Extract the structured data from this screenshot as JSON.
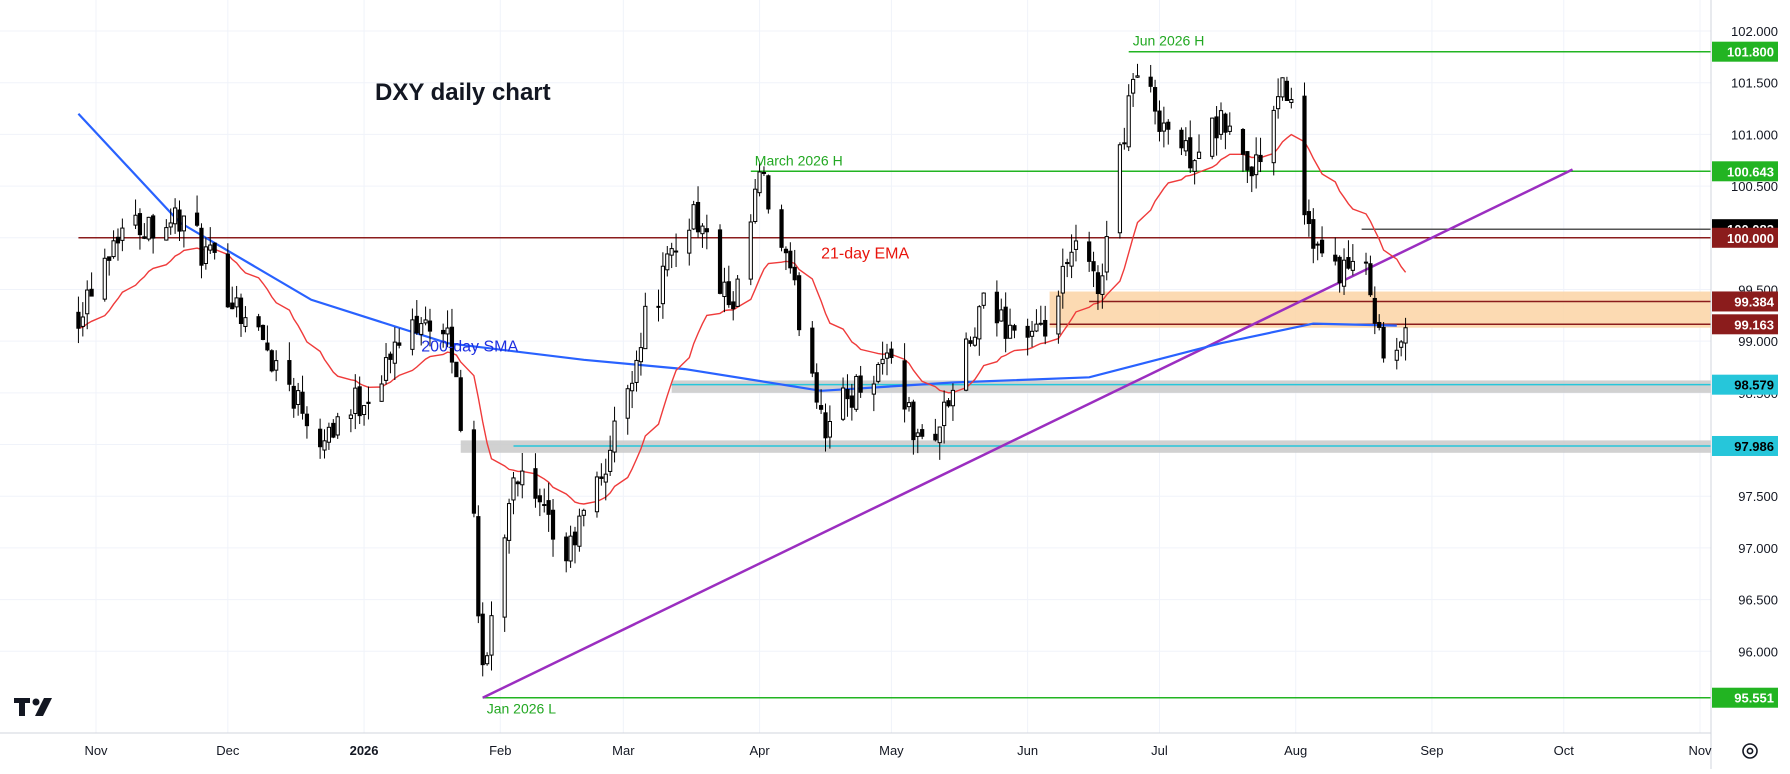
{
  "chart_data": {
    "type": "candlestick",
    "title": "DXY daily chart",
    "ylim": [
      95.2,
      102.3
    ],
    "x_months": [
      {
        "label": "Nov",
        "date": "2025-11-01"
      },
      {
        "label": "Dec",
        "date": "2025-12-01"
      },
      {
        "label": "2026",
        "date": "2026-01-01",
        "bold": true
      },
      {
        "label": "Feb",
        "date": "2026-02-01"
      },
      {
        "label": "Mar",
        "date": "2026-03-01"
      },
      {
        "label": "Apr",
        "date": "2026-04-01"
      },
      {
        "label": "May",
        "date": "2026-05-01"
      },
      {
        "label": "Jun",
        "date": "2026-06-01"
      },
      {
        "label": "Jul",
        "date": "2026-07-01"
      },
      {
        "label": "Aug",
        "date": "2026-08-01"
      },
      {
        "label": "Sep",
        "date": "2026-09-01"
      },
      {
        "label": "Oct",
        "date": "2026-10-01"
      },
      {
        "label": "Nov",
        "date": "2026-11-01"
      }
    ],
    "y_ticks": [
      "102.000",
      "101.500",
      "101.000",
      "100.500",
      "100.000",
      "99.500",
      "99.000",
      "98.500",
      "98.000",
      "97.500",
      "97.000",
      "96.500",
      "96.000"
    ],
    "anchors": [
      {
        "date": "2025-10-28",
        "close": 99.3
      },
      {
        "date": "2025-11-06",
        "close": 100.1
      },
      {
        "date": "2025-11-20",
        "close": 100.2
      },
      {
        "date": "2025-12-09",
        "close": 99.0
      },
      {
        "date": "2025-12-22",
        "close": 98.1
      },
      {
        "date": "2026-01-02",
        "close": 98.5
      },
      {
        "date": "2026-01-14",
        "close": 99.3
      },
      {
        "date": "2026-01-21",
        "close": 98.9
      },
      {
        "date": "2026-01-26",
        "close": 97.3
      },
      {
        "date": "2026-01-28",
        "close": 95.7
      },
      {
        "date": "2026-02-04",
        "close": 97.8
      },
      {
        "date": "2026-02-09",
        "close": 97.4
      },
      {
        "date": "2026-02-16",
        "close": 96.9
      },
      {
        "date": "2026-02-25",
        "close": 97.8
      },
      {
        "date": "2026-03-06",
        "close": 99.2
      },
      {
        "date": "2026-03-17",
        "close": 100.3
      },
      {
        "date": "2026-03-26",
        "close": 99.2
      },
      {
        "date": "2026-04-01",
        "close": 100.6
      },
      {
        "date": "2026-04-08",
        "close": 99.6
      },
      {
        "date": "2026-04-16",
        "close": 98.2
      },
      {
        "date": "2026-04-24",
        "close": 98.6
      },
      {
        "date": "2026-05-01",
        "close": 98.9
      },
      {
        "date": "2026-05-07",
        "close": 98.0
      },
      {
        "date": "2026-05-12",
        "close": 98.2
      },
      {
        "date": "2026-05-22",
        "close": 99.3
      },
      {
        "date": "2026-06-04",
        "close": 99.0
      },
      {
        "date": "2026-06-12",
        "close": 99.9
      },
      {
        "date": "2026-06-17",
        "close": 99.5
      },
      {
        "date": "2026-06-25",
        "close": 101.6
      },
      {
        "date": "2026-07-07",
        "close": 100.8
      },
      {
        "date": "2026-07-16",
        "close": 101.1
      },
      {
        "date": "2026-07-22",
        "close": 100.6
      },
      {
        "date": "2026-07-30",
        "close": 101.5
      },
      {
        "date": "2026-08-05",
        "close": 99.8
      },
      {
        "date": "2026-08-12",
        "close": 99.7
      },
      {
        "date": "2026-08-18",
        "close": 99.6
      },
      {
        "date": "2026-08-21",
        "close": 98.8
      },
      {
        "date": "2026-08-26",
        "close": 99.0
      }
    ],
    "sma200": [
      {
        "date": "2025-10-28",
        "value": 101.2
      },
      {
        "date": "2025-11-20",
        "value": 100.15
      },
      {
        "date": "2025-12-20",
        "value": 99.4
      },
      {
        "date": "2026-01-20",
        "value": 98.98
      },
      {
        "date": "2026-02-20",
        "value": 98.82
      },
      {
        "date": "2026-03-15",
        "value": 98.73
      },
      {
        "date": "2026-04-15",
        "value": 98.52
      },
      {
        "date": "2026-05-15",
        "value": 98.6
      },
      {
        "date": "2026-06-15",
        "value": 98.65
      },
      {
        "date": "2026-07-15",
        "value": 98.98
      },
      {
        "date": "2026-08-05",
        "value": 99.17
      },
      {
        "date": "2026-08-24",
        "value": 99.15
      }
    ],
    "horizontal_levels": [
      {
        "value": 101.8,
        "label": "101.800",
        "color": "#22b422",
        "text_color": "#ffffff",
        "from": "2026-06-24",
        "line": "#22b422"
      },
      {
        "value": 100.643,
        "label": "100.643",
        "color": "#22b422",
        "text_color": "#ffffff",
        "from": "2026-03-30",
        "line": "#22b422"
      },
      {
        "value": 100.083,
        "label": "100.083",
        "color": "#000000",
        "text_color": "#ffffff",
        "from": "2026-08-16",
        "line": "#555555"
      },
      {
        "value": 100.0,
        "label": "100.000",
        "color": "#8b1c1c",
        "text_color": "#ffffff",
        "from": "2025-10-28",
        "line": "#8b1c1c"
      },
      {
        "value": 99.384,
        "label": "99.384",
        "color": "#8b1c1c",
        "text_color": "#ffffff",
        "from": "2026-06-15",
        "line": "#8b1c1c"
      },
      {
        "value": 99.163,
        "label": "99.163",
        "color": "#8b1c1c",
        "text_color": "#ffffff",
        "from": "2026-06-06",
        "line": "#8b1c1c"
      },
      {
        "value": 98.579,
        "label": "98.579",
        "color": "#26c6da",
        "text_color": "#000000",
        "from": "2026-03-12",
        "line": "#26c6da"
      },
      {
        "value": 97.986,
        "label": "97.986",
        "color": "#26c6da",
        "text_color": "#000000",
        "from": "2026-02-04",
        "line": "#26c6da"
      },
      {
        "value": 95.551,
        "label": "95.551",
        "color": "#22b422",
        "text_color": "#ffffff",
        "from": "2026-01-28",
        "line": "#22b422"
      }
    ],
    "zones": [
      {
        "from": "2026-06-06",
        "y0": 99.13,
        "y1": 99.48,
        "color": "#fbd3a4"
      },
      {
        "from": "2026-03-12",
        "y0": 98.5,
        "y1": 98.62,
        "color": "#c9c9c9"
      },
      {
        "from": "2026-01-23",
        "y0": 97.92,
        "y1": 98.04,
        "color": "#c9c9c9"
      }
    ],
    "trendline": {
      "from_date": "2026-01-28",
      "from_value": 95.551,
      "to_date": "2026-10-03",
      "to_value": 100.66,
      "color": "#9b2ec0"
    },
    "annotations": [
      {
        "text": "Jun 2026 H",
        "date": "2026-06-24",
        "value": 101.8,
        "color": "#22a822"
      },
      {
        "text": "March 2026 H",
        "date": "2026-03-30",
        "value": 100.643,
        "color": "#22a822"
      },
      {
        "text": "Jan 2026 L",
        "date": "2026-01-28",
        "value": 95.551,
        "color": "#22a822"
      }
    ],
    "series_labels": [
      {
        "text": "21-day EMA",
        "color": "#e8140c",
        "date": "2026-04-15",
        "value": 99.8
      },
      {
        "text": "200-day SMA",
        "color": "#1d2ee0",
        "date": "2026-01-14",
        "value": 98.9
      }
    ],
    "colors": {
      "sma": "#2962ff",
      "ema": "#ef3b3b",
      "up_fill": "#ffffff",
      "down_fill": "#000000",
      "grid": "#f0f3fa"
    }
  }
}
